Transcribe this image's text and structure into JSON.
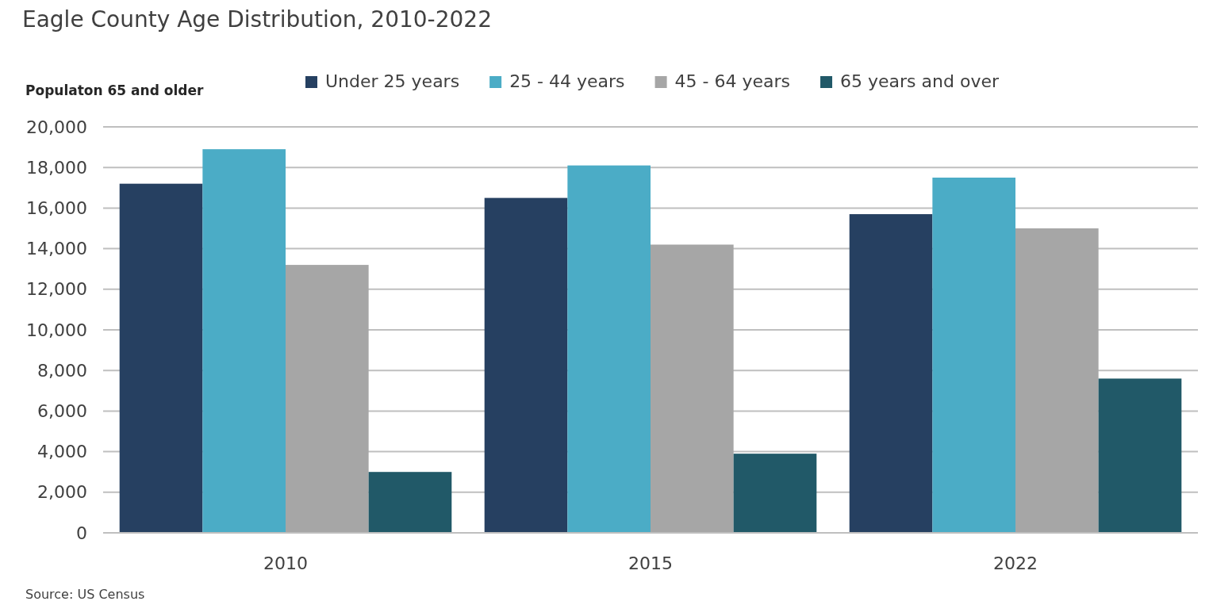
{
  "chart_data": {
    "type": "bar",
    "title": "Eagle County Age Distribution, 2010-2022",
    "ylabel": "Populaton 65 and older",
    "categories": [
      "2010",
      "2015",
      "2022"
    ],
    "series": [
      {
        "name": "Under 25 years",
        "color": "#264061",
        "values": [
          17200,
          16500,
          15700
        ]
      },
      {
        "name": "25 - 44 years",
        "color": "#4bacc6",
        "values": [
          18900,
          18100,
          17500
        ]
      },
      {
        "name": "45 - 64 years",
        "color": "#a6a6a6",
        "values": [
          13200,
          14200,
          15000
        ]
      },
      {
        "name": "65 years and over",
        "color": "#215968",
        "values": [
          3000,
          3900,
          7600
        ]
      }
    ],
    "ylim": [
      0,
      20000
    ],
    "yticks": [
      {
        "value": 0,
        "label": "0"
      },
      {
        "value": 2000,
        "label": "2,000"
      },
      {
        "value": 4000,
        "label": "4,000"
      },
      {
        "value": 6000,
        "label": "6,000"
      },
      {
        "value": 8000,
        "label": "8,000"
      },
      {
        "value": 10000,
        "label": "10,000"
      },
      {
        "value": 12000,
        "label": "12,000"
      },
      {
        "value": 14000,
        "label": "14,000"
      },
      {
        "value": 16000,
        "label": "16,000"
      },
      {
        "value": 18000,
        "label": "18,000"
      },
      {
        "value": 20000,
        "label": "20,000"
      }
    ],
    "grid": "y",
    "legend": "top",
    "annotations": [
      "Source: US Census"
    ]
  }
}
